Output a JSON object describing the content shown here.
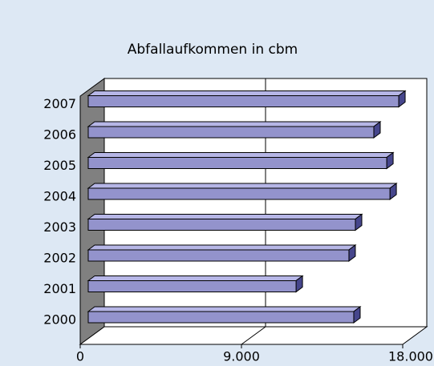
{
  "chart_data": {
    "type": "bar",
    "orientation": "horizontal",
    "title": "Abfallaufkommen in cbm",
    "categories": [
      "2000",
      "2001",
      "2002",
      "2003",
      "2004",
      "2005",
      "2006",
      "2007"
    ],
    "values": [
      14820,
      11600,
      14550,
      14910,
      16840,
      16660,
      15940,
      17330
    ],
    "color": "#9393cc",
    "xlim": [
      0,
      18000
    ],
    "xticks": [
      0,
      {
        "value": 9000,
        "label": "9.000"
      },
      {
        "value": 18000,
        "label": "18.000"
      }
    ],
    "grid": true
  }
}
